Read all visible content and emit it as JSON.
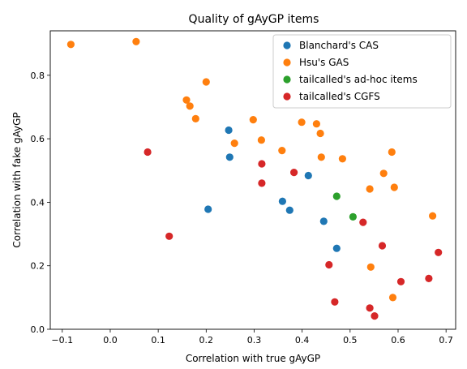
{
  "chart_data": {
    "type": "scatter",
    "title": "Quality of gAyGP items",
    "xlabel": "Correlation with true gAyGP",
    "ylabel": "Correlation with fake gAyGP",
    "xlim": [
      -0.125,
      0.72
    ],
    "ylim": [
      0.0,
      0.94
    ],
    "xticks": [
      -0.1,
      0.0,
      0.1,
      0.2,
      0.3,
      0.4,
      0.5,
      0.6,
      0.7
    ],
    "xtick_labels": [
      "−0.1",
      "0.0",
      "0.1",
      "0.2",
      "0.3",
      "0.4",
      "0.5",
      "0.6",
      "0.7"
    ],
    "yticks": [
      0.0,
      0.2,
      0.4,
      0.6,
      0.8
    ],
    "ytick_labels": [
      "0.0",
      "0.2",
      "0.4",
      "0.6",
      "0.8"
    ],
    "grid": false,
    "legend_position": "top-right",
    "series": [
      {
        "name": "Blanchard's CAS",
        "color": "#1f77b4",
        "points": [
          [
            0.247,
            0.627
          ],
          [
            0.249,
            0.542
          ],
          [
            0.413,
            0.484
          ],
          [
            0.359,
            0.403
          ],
          [
            0.374,
            0.375
          ],
          [
            0.204,
            0.378
          ],
          [
            0.445,
            0.34
          ],
          [
            0.472,
            0.255
          ]
        ]
      },
      {
        "name": "Hsu's GAS",
        "color": "#ff7f0e",
        "points": [
          [
            -0.082,
            0.897
          ],
          [
            0.054,
            0.906
          ],
          [
            0.2,
            0.779
          ],
          [
            0.159,
            0.722
          ],
          [
            0.166,
            0.703
          ],
          [
            0.178,
            0.663
          ],
          [
            0.298,
            0.66
          ],
          [
            0.399,
            0.652
          ],
          [
            0.43,
            0.647
          ],
          [
            0.438,
            0.617
          ],
          [
            0.259,
            0.586
          ],
          [
            0.315,
            0.596
          ],
          [
            0.358,
            0.563
          ],
          [
            0.44,
            0.542
          ],
          [
            0.484,
            0.537
          ],
          [
            0.587,
            0.558
          ],
          [
            0.57,
            0.491
          ],
          [
            0.541,
            0.442
          ],
          [
            0.592,
            0.447
          ],
          [
            0.672,
            0.357
          ],
          [
            0.543,
            0.196
          ],
          [
            0.589,
            0.1
          ]
        ]
      },
      {
        "name": "tailcalled's ad-hoc items",
        "color": "#2ca02c",
        "points": [
          [
            0.472,
            0.419
          ],
          [
            0.506,
            0.354
          ]
        ]
      },
      {
        "name": "tailcalled's CGFS",
        "color": "#d62728",
        "points": [
          [
            0.078,
            0.558
          ],
          [
            0.316,
            0.521
          ],
          [
            0.383,
            0.494
          ],
          [
            0.316,
            0.46
          ],
          [
            0.123,
            0.293
          ],
          [
            0.527,
            0.337
          ],
          [
            0.567,
            0.263
          ],
          [
            0.684,
            0.242
          ],
          [
            0.456,
            0.203
          ],
          [
            0.606,
            0.15
          ],
          [
            0.664,
            0.16
          ],
          [
            0.468,
            0.086
          ],
          [
            0.541,
            0.067
          ],
          [
            0.551,
            0.042
          ]
        ]
      }
    ]
  }
}
